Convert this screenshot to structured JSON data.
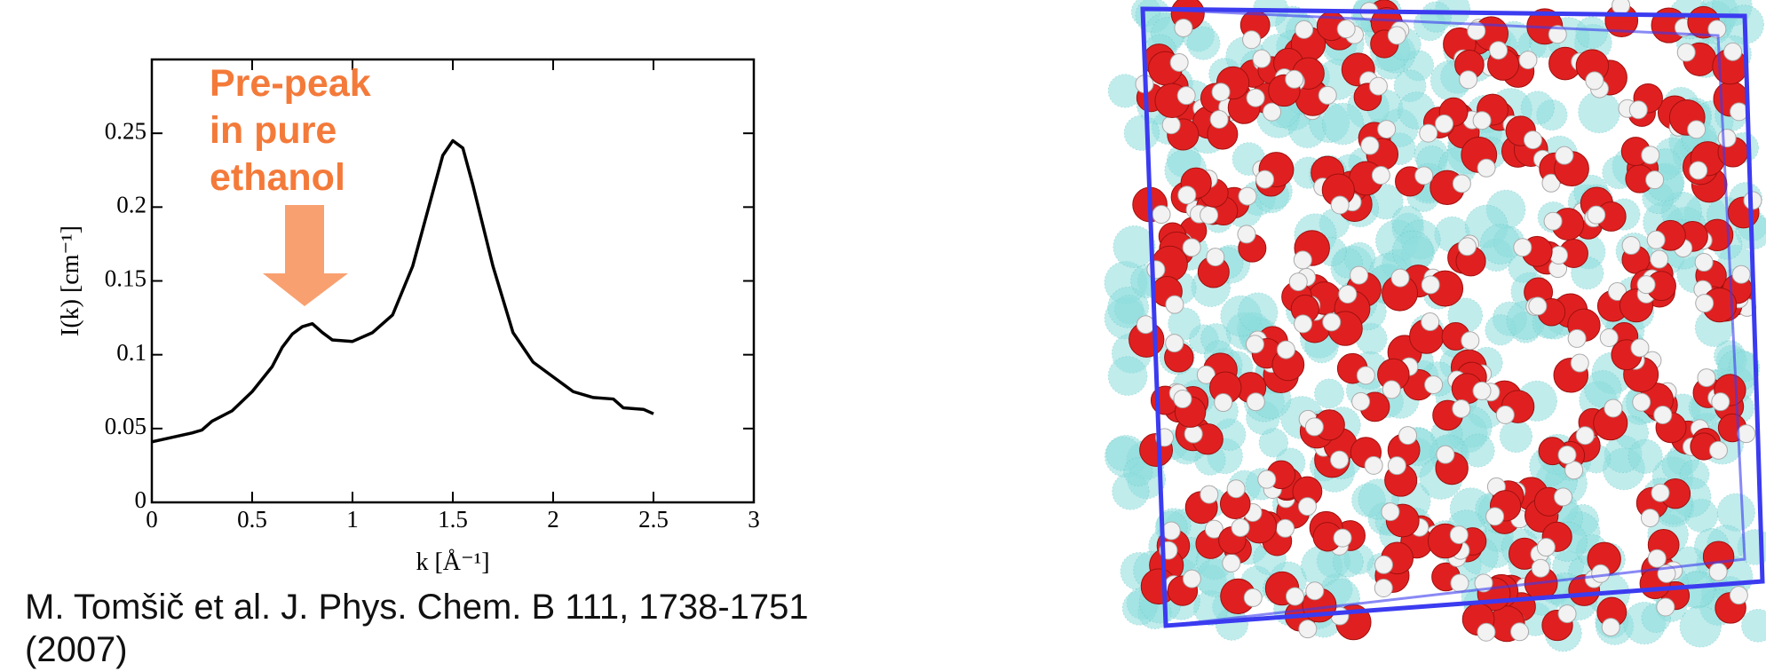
{
  "chart_data": {
    "type": "line",
    "x_label": "k [Å⁻¹]",
    "y_label": "I(k) [cm⁻¹]",
    "annotation": [
      "Pre-peak",
      "in pure",
      "ethanol"
    ],
    "x": [
      0,
      0.1,
      0.2,
      0.25,
      0.3,
      0.4,
      0.5,
      0.6,
      0.65,
      0.7,
      0.75,
      0.8,
      0.85,
      0.9,
      1.0,
      1.1,
      1.2,
      1.3,
      1.4,
      1.45,
      1.5,
      1.55,
      1.6,
      1.7,
      1.8,
      1.9,
      2.0,
      2.1,
      2.2,
      2.3,
      2.35,
      2.45,
      2.5
    ],
    "values": [
      0.041,
      0.044,
      0.047,
      0.049,
      0.055,
      0.062,
      0.075,
      0.092,
      0.105,
      0.114,
      0.119,
      0.121,
      0.115,
      0.11,
      0.109,
      0.115,
      0.127,
      0.16,
      0.21,
      0.235,
      0.245,
      0.24,
      0.215,
      0.16,
      0.115,
      0.095,
      0.085,
      0.075,
      0.071,
      0.07,
      0.064,
      0.063,
      0.06
    ],
    "color": "#000000",
    "xlim": [
      0,
      3
    ],
    "xticks": [
      0,
      0.5,
      1,
      1.5,
      2,
      2.5,
      3
    ],
    "ylim": [
      0,
      0.3
    ],
    "yticks": [
      0,
      0.05,
      0.1,
      0.15,
      0.2,
      0.25
    ]
  },
  "citation": "M. Tomšič et al. J. Phys. Chem. B 111, 1738-1751 (2007)"
}
